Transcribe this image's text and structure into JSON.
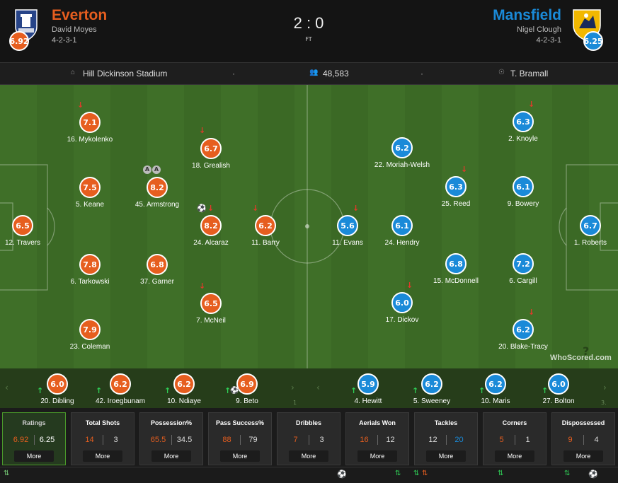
{
  "header": {
    "home": {
      "name": "Everton",
      "manager": "David Moyes",
      "formation": "4-2-3-1",
      "rating": "6.92",
      "color": "#e65e1f"
    },
    "away": {
      "name": "Mansfield",
      "manager": "Nigel Clough",
      "formation": "4-2-3-1",
      "rating": "6.25",
      "color": "#1a8ad8"
    },
    "score": "2 : 0",
    "status": "FT"
  },
  "info": {
    "stadium": "Hill Dickinson Stadium",
    "attendance": "48,583",
    "referee": "T. Bramall",
    "dot": "·"
  },
  "home_players": [
    {
      "rating": "7.1",
      "name": "16. Mykolenko",
      "down": true
    },
    {
      "rating": "7.5",
      "name": "5. Keane"
    },
    {
      "rating": "7.8",
      "name": "6. Tarkowski"
    },
    {
      "rating": "7.9",
      "name": "23. Coleman"
    },
    {
      "rating": "6.5",
      "name": "12. Travers"
    },
    {
      "rating": "8.2",
      "name": "45. Armstrong",
      "assists": 2
    },
    {
      "rating": "6.8",
      "name": "37. Garner"
    },
    {
      "rating": "6.7",
      "name": "18. Grealish",
      "down": true
    },
    {
      "rating": "8.2",
      "name": "24. Alcaraz",
      "down": true,
      "goal": true
    },
    {
      "rating": "6.5",
      "name": "7. McNeil",
      "down": true
    },
    {
      "rating": "6.2",
      "name": "11. Barry",
      "down": true
    }
  ],
  "away_players": [
    {
      "rating": "5.6",
      "name": "11. Evans",
      "down": true
    },
    {
      "rating": "6.2",
      "name": "22. Moriah-Welsh"
    },
    {
      "rating": "6.1",
      "name": "24. Hendry"
    },
    {
      "rating": "6.0",
      "name": "17. Dickov",
      "down": true
    },
    {
      "rating": "6.3",
      "name": "25. Reed",
      "down": true
    },
    {
      "rating": "6.8",
      "name": "15. McDonnell"
    },
    {
      "rating": "6.3",
      "name": "2. Knoyle",
      "down": true
    },
    {
      "rating": "6.1",
      "name": "9. Bowery"
    },
    {
      "rating": "7.2",
      "name": "6. Cargill"
    },
    {
      "rating": "6.2",
      "name": "20. Blake-Tracy",
      "down": true
    },
    {
      "rating": "6.7",
      "name": "1. Roberts"
    }
  ],
  "home_subs": [
    {
      "rating": "6.0",
      "name": "20. Dibling"
    },
    {
      "rating": "6.2",
      "name": "42. Iroegbunam"
    },
    {
      "rating": "6.2",
      "name": "10. Ndiaye"
    },
    {
      "rating": "6.9",
      "name": "9. Beto",
      "goal": true
    }
  ],
  "away_subs": [
    {
      "rating": "5.9",
      "name": "4. Hewitt"
    },
    {
      "rating": "6.2",
      "name": "5. Sweeney"
    },
    {
      "rating": "6.2",
      "name": "10. Maris"
    },
    {
      "rating": "6.0",
      "name": "27. Bolton"
    }
  ],
  "bench_hidden": {
    "home_partial": "1",
    "away_partial": "3."
  },
  "watermark": "WhoScored.com",
  "stats": [
    {
      "title": "Ratings",
      "home": "6.92",
      "away": "6.25",
      "more": "More",
      "active": true,
      "home_color": "#e65e1f",
      "away_color": "#fff"
    },
    {
      "title": "Total Shots",
      "home": "14",
      "away": "3",
      "more": "More",
      "home_color": "#e65e1f",
      "away_color": "#ddd"
    },
    {
      "title": "Possession%",
      "home": "65.5",
      "away": "34.5",
      "more": "More",
      "home_color": "#e65e1f",
      "away_color": "#ddd"
    },
    {
      "title": "Pass Success%",
      "home": "88",
      "away": "79",
      "more": "More",
      "home_color": "#e65e1f",
      "away_color": "#ddd"
    },
    {
      "title": "Dribbles",
      "home": "7",
      "away": "3",
      "more": "More",
      "home_color": "#e65e1f",
      "away_color": "#ddd"
    },
    {
      "title": "Aerials Won",
      "home": "16",
      "away": "12",
      "more": "More",
      "home_color": "#e65e1f",
      "away_color": "#ddd"
    },
    {
      "title": "Tackles",
      "home": "12",
      "away": "20",
      "more": "More",
      "home_color": "#ddd",
      "away_color": "#1a8ad8"
    },
    {
      "title": "Corners",
      "home": "5",
      "away": "1",
      "more": "More",
      "home_color": "#e65e1f",
      "away_color": "#ddd"
    },
    {
      "title": "Dispossessed",
      "home": "9",
      "away": "4",
      "more": "More",
      "home_color": "#e65e1f",
      "away_color": "#ddd"
    }
  ]
}
